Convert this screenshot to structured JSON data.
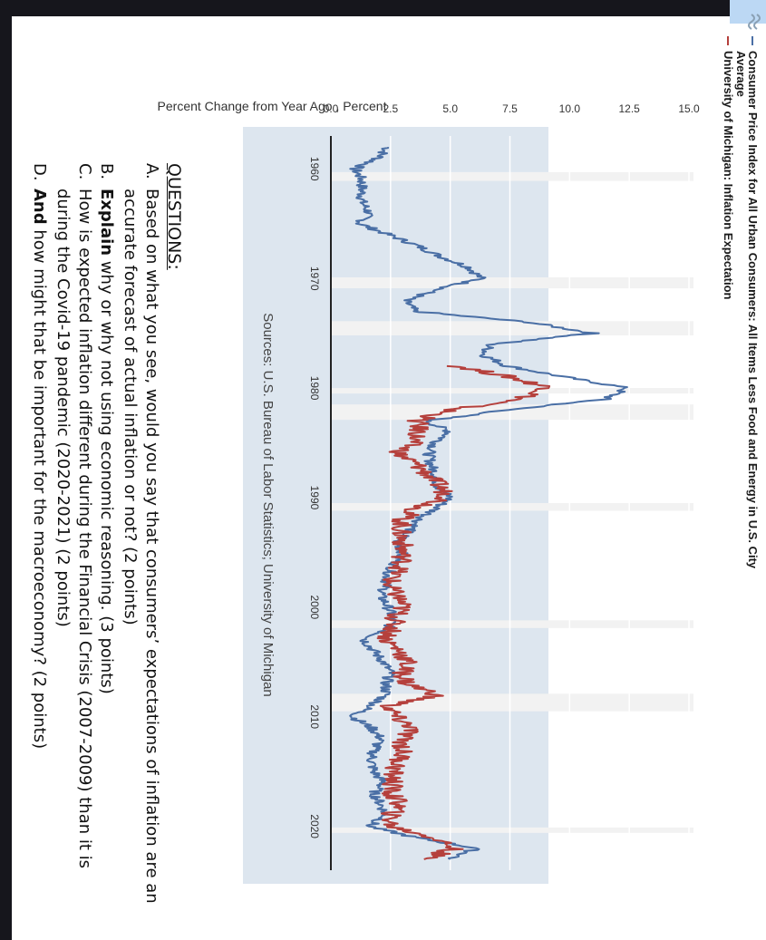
{
  "legend": [
    {
      "label_line1": "Consumer Price Index for All Urban Consumers: All Items Less Food and Energy in U.S. City",
      "label_line2": "Average",
      "color": "#4a6fa5"
    },
    {
      "label_line1": "University of Michigan: Inflation Expectation",
      "label_line2": "",
      "color": "#b5403c"
    }
  ],
  "source_text": "Sources: U.S. Bureau of Labor Statistics; University of Michigan",
  "chart_data": {
    "type": "line",
    "ylabel": "Percent Change from Year Ago , Percent",
    "xlim": [
      1957,
      2024
    ],
    "ylim": [
      0,
      15
    ],
    "x_ticks": [
      1960,
      1970,
      1980,
      1990,
      2000,
      2010,
      2020
    ],
    "y_ticks": [
      "0.0",
      "2.5",
      "5.0",
      "7.5",
      "10.0",
      "12.5",
      "15.0"
    ],
    "grid": "horizontal",
    "legend_position": "top",
    "recessions": [
      [
        1960.3,
        1961.1
      ],
      [
        1969.9,
        1970.9
      ],
      [
        1973.9,
        1975.2
      ],
      [
        1980.0,
        1980.5
      ],
      [
        1981.5,
        1982.9
      ],
      [
        1990.5,
        1991.2
      ],
      [
        2001.2,
        2001.9
      ],
      [
        2007.9,
        2009.5
      ],
      [
        2020.1,
        2020.4
      ]
    ],
    "series": [
      {
        "name": "Consumer Price Index for All Urban Consumers: All Items Less Food and Energy in U.S. City Average",
        "color": "#4a6fa5",
        "x": [
          1958,
          1959,
          1960,
          1961,
          1962,
          1963,
          1964,
          1965,
          1966,
          1967,
          1968,
          1969,
          1970,
          1971,
          1972,
          1973,
          1974,
          1975,
          1976,
          1977,
          1978,
          1979,
          1980,
          1981,
          1982,
          1983,
          1984,
          1985,
          1986,
          1987,
          1988,
          1989,
          1990,
          1991,
          1992,
          1993,
          1994,
          1995,
          1996,
          1997,
          1998,
          1999,
          2000,
          2001,
          2002,
          2003,
          2004,
          2005,
          2006,
          2007,
          2008,
          2009,
          2010,
          2011,
          2012,
          2013,
          2014,
          2015,
          2016,
          2017,
          2018,
          2019,
          2020,
          2021,
          2022,
          2023
        ],
        "y": [
          2.4,
          2.0,
          1.0,
          1.3,
          1.3,
          1.3,
          1.6,
          1.2,
          2.4,
          3.6,
          4.6,
          5.8,
          6.3,
          4.5,
          3.1,
          3.5,
          8.3,
          11.0,
          6.7,
          6.4,
          7.4,
          9.8,
          12.4,
          11.5,
          7.4,
          4.0,
          5.0,
          4.4,
          4.1,
          4.2,
          4.4,
          4.5,
          5.0,
          4.4,
          3.7,
          3.3,
          2.8,
          3.0,
          2.7,
          2.4,
          2.3,
          2.1,
          2.4,
          2.6,
          2.4,
          1.4,
          1.8,
          2.2,
          2.5,
          2.3,
          2.3,
          1.7,
          0.9,
          1.7,
          2.1,
          1.8,
          1.7,
          1.8,
          2.2,
          1.8,
          2.1,
          2.3,
          1.6,
          3.5,
          6.1,
          5.0
        ]
      },
      {
        "name": "University of Michigan: Inflation Expectation",
        "color": "#b5403c",
        "x": [
          1978,
          1979,
          1980,
          1981,
          1982,
          1983,
          1984,
          1985,
          1986,
          1987,
          1988,
          1989,
          1990,
          1991,
          1992,
          1993,
          1994,
          1995,
          1996,
          1997,
          1998,
          1999,
          2000,
          2001,
          2002,
          2003,
          2004,
          2005,
          2006,
          2007,
          2008,
          2009,
          2010,
          2011,
          2012,
          2013,
          2014,
          2015,
          2016,
          2017,
          2018,
          2019,
          2020,
          2021,
          2022,
          2023
        ],
        "y": [
          5.3,
          7.5,
          9.2,
          7.9,
          5.0,
          3.6,
          3.7,
          3.4,
          2.8,
          3.6,
          4.1,
          4.6,
          4.9,
          3.6,
          3.0,
          2.9,
          3.0,
          3.0,
          3.0,
          2.7,
          2.4,
          2.8,
          3.0,
          2.7,
          2.6,
          2.3,
          2.9,
          3.2,
          3.0,
          3.2,
          4.5,
          2.4,
          2.7,
          3.4,
          3.0,
          3.0,
          2.9,
          2.6,
          2.6,
          2.5,
          2.9,
          2.5,
          2.5,
          4.3,
          5.2,
          3.9
        ]
      }
    ]
  },
  "questions": {
    "title": "QUESTIONS:",
    "a": {
      "label": "A.",
      "line1": "Based on what you see, would you say that consumers’ expectations of inflation are an",
      "line2": "accurate forecast of actual inflation or not? (2 points)"
    },
    "b": {
      "label": "B.",
      "bold": "Explain",
      "rest": " why or why not using economic reasoning.  (3 points)"
    },
    "c": {
      "label": "C.",
      "line1": "How is expected inflation different during the Financial Crisis (2007-2009) than it is",
      "line2": "during the Covid-19 pandemic (2020-2021) (2 points)"
    },
    "d": {
      "label": "D.",
      "bold": "And",
      "rest": " how might that be important for the macroeconomy? (2 points)"
    }
  }
}
